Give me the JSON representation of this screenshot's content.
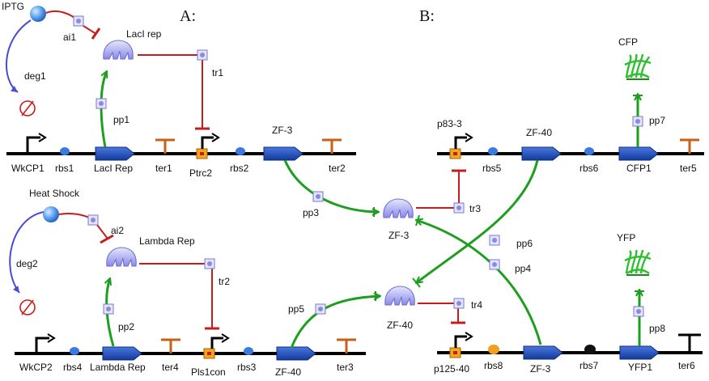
{
  "panels": {
    "a": "A:",
    "b": "B:"
  },
  "colors": {
    "repress": "#c81c1c",
    "activate": "#1e9e1e",
    "degrade": "#4a4ad8",
    "cds": "#1f4fc0",
    "terminator": "#c8601a",
    "promoter_box": "#f2a81d"
  },
  "inducers": {
    "iptg": "IPTG",
    "heat_shock": "Heat Shock"
  },
  "proteins": {
    "laci": "LacI rep",
    "lambda": "Lambda Rep",
    "zf3_a": "ZF-3",
    "zf3_b": "ZF-3",
    "zf40": "ZF-40",
    "cfp": "CFP",
    "yfp": "YFP"
  },
  "interactions": {
    "ai1": "ai1",
    "deg1": "deg1",
    "pp1": "pp1",
    "tr1": "tr1",
    "ai2": "ai2",
    "deg2": "deg2",
    "pp2": "pp2",
    "tr2": "tr2",
    "pp3": "pp3",
    "pp4": "pp4",
    "pp5": "pp5",
    "pp6": "pp6",
    "pp7": "pp7",
    "pp8": "pp8",
    "tr3": "tr3",
    "tr4": "tr4"
  },
  "parts": {
    "row1": {
      "p1": "WkCP1",
      "r1": "rbs1",
      "c1": "LacI Rep",
      "t1": "ter1",
      "p2": "Ptrc2",
      "r2": "rbs2",
      "c2": "ZF-3",
      "t2": "ter2"
    },
    "row2": {
      "p1": "WkCP2",
      "r1": "rbs4",
      "c1": "Lambda Rep",
      "t1": "ter4",
      "p2": "Pls1con",
      "r2": "rbs3",
      "c2": "ZF-40",
      "t2": "ter3"
    },
    "row3": {
      "p1": "p83-3",
      "r1": "rbs5",
      "c1": "ZF-40",
      "r2": "rbs6",
      "c2": "CFP1",
      "t1": "ter5"
    },
    "row4": {
      "p1": "p125-40",
      "r1": "rbs8",
      "c1": "ZF-3",
      "r2": "rbs7",
      "c2": "YFP1",
      "t1": "ter6"
    }
  }
}
